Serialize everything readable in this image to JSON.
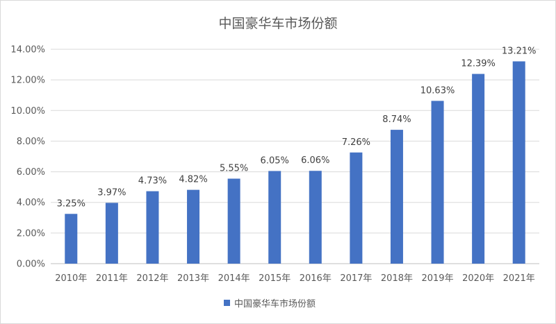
{
  "chart_data": {
    "type": "bar",
    "title": "中国豪华车市场份额",
    "categories": [
      "2010年",
      "2011年",
      "2012年",
      "2013年",
      "2014年",
      "2015年",
      "2016年",
      "2017年",
      "2018年",
      "2019年",
      "2020年",
      "2021年"
    ],
    "series": [
      {
        "name": "中国豪华车市场份额",
        "values": [
          3.25,
          3.97,
          4.73,
          4.82,
          5.55,
          6.05,
          6.06,
          7.26,
          8.74,
          10.63,
          12.39,
          13.21
        ],
        "labels": [
          "3.25%",
          "3.97%",
          "4.73%",
          "4.82%",
          "5.55%",
          "6.05%",
          "6.06%",
          "7.26%",
          "8.74%",
          "10.63%",
          "12.39%",
          "13.21%"
        ]
      }
    ],
    "ylim": [
      0,
      14
    ],
    "yticks": [
      0,
      2,
      4,
      6,
      8,
      10,
      12,
      14
    ],
    "ytick_labels": [
      "0.00%",
      "2.00%",
      "4.00%",
      "6.00%",
      "8.00%",
      "10.00%",
      "12.00%",
      "14.00%"
    ],
    "xlabel": "",
    "ylabel": "",
    "grid": true,
    "legend": "bottom",
    "bar_color": "#4472c4"
  }
}
